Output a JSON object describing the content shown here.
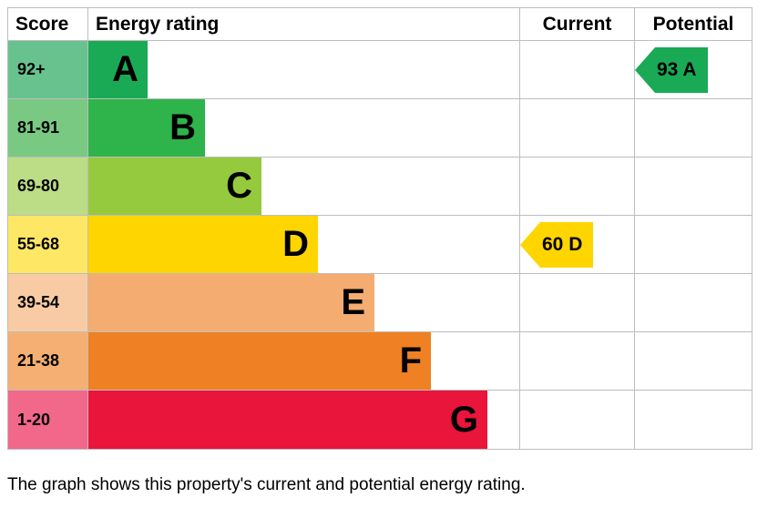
{
  "headers": {
    "score": "Score",
    "rating": "Energy rating",
    "current": "Current",
    "potential": "Potential"
  },
  "bands": [
    {
      "label": "92+",
      "letter": "A",
      "barWidthPx": 65,
      "barColor": "#1aaa55",
      "scoreBg": "#68c28e"
    },
    {
      "label": "81-91",
      "letter": "B",
      "barWidthPx": 128,
      "barColor": "#2fb34b",
      "scoreBg": "#79c983"
    },
    {
      "label": "69-80",
      "letter": "C",
      "barWidthPx": 190,
      "barColor": "#95ca3e",
      "scoreBg": "#bcdc86"
    },
    {
      "label": "55-68",
      "letter": "D",
      "barWidthPx": 252,
      "barColor": "#ffd500",
      "scoreBg": "#ffe766"
    },
    {
      "label": "39-54",
      "letter": "E",
      "barWidthPx": 314,
      "barColor": "#f4ac71",
      "scoreBg": "#f8cba4"
    },
    {
      "label": "21-38",
      "letter": "F",
      "barWidthPx": 376,
      "barColor": "#ef8023",
      "scoreBg": "#f5af72"
    },
    {
      "label": "1-20",
      "letter": "G",
      "barWidthPx": 438,
      "barColor": "#e9153b",
      "scoreBg": "#f1688a"
    }
  ],
  "current": {
    "bandIndex": 3,
    "text": "60 D",
    "color": "#ffd500"
  },
  "potential": {
    "bandIndex": 0,
    "text": "93 A",
    "color": "#1aaa55"
  },
  "caption": "The graph shows this property's current and potential energy rating."
}
